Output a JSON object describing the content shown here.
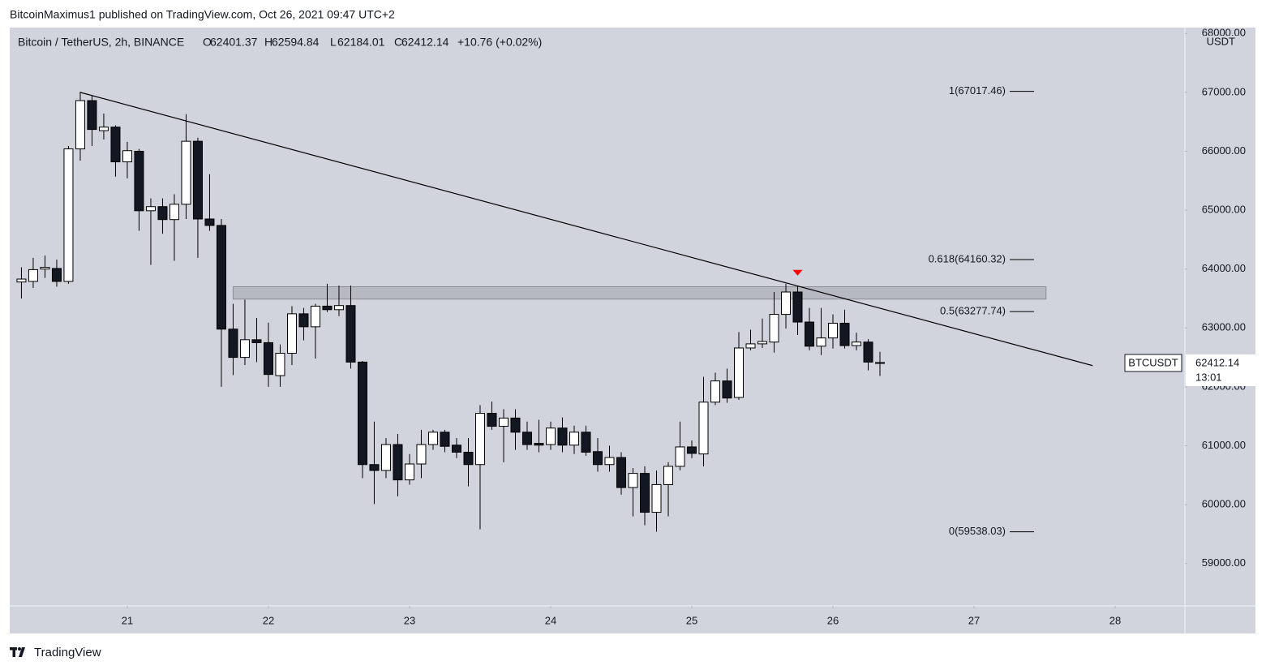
{
  "header": {
    "published": "BitcoinMaximus1 published on TradingView.com, Oct 26, 2021 09:47 UTC+2",
    "brand": "TradingView"
  },
  "chart_data": {
    "type": "candlestick",
    "title": "Bitcoin / TetherUS, 2h, BINANCE",
    "ohlc_letters": [
      "O",
      "H",
      "L",
      "C"
    ],
    "change": "+10.76 (+0.02%)",
    "unit": "USDT",
    "symbol": "BTCUSDT",
    "countdown": "13:01",
    "x": [
      20.25,
      20.3333,
      20.4167,
      20.5,
      20.5833,
      20.6667,
      20.75,
      20.8333,
      20.9167,
      21,
      21.0833,
      21.1667,
      21.25,
      21.3333,
      21.4167,
      21.5,
      21.5833,
      21.6667,
      21.75,
      21.8333,
      21.9167,
      22,
      22.0833,
      22.1667,
      22.25,
      22.3333,
      22.4167,
      22.5,
      22.5833,
      22.6667,
      22.75,
      22.8333,
      22.9167,
      23,
      23.0833,
      23.1667,
      23.25,
      23.3333,
      23.4167,
      23.5,
      23.5833,
      23.6667,
      23.75,
      23.8333,
      23.9167,
      24,
      24.0833,
      24.1667,
      24.25,
      24.3333,
      24.4167,
      24.5,
      24.5833,
      24.6667,
      24.75,
      24.8333,
      24.9167,
      25,
      25.0833,
      25.1667,
      25.25,
      25.3333,
      25.4167,
      25.5,
      25.5833,
      25.6667,
      25.75,
      25.8333,
      25.9167,
      26,
      26.0833,
      26.1667,
      26.25,
      26.3333
    ],
    "open": [
      63780,
      63790,
      64000,
      64010,
      63790,
      66040,
      66860,
      66350,
      66410,
      65820,
      66000,
      64990,
      65060,
      64840,
      65100,
      66170,
      64850,
      64740,
      62980,
      62500,
      62800,
      62750,
      62190,
      62570,
      63240,
      63020,
      63370,
      63310,
      63380,
      62420,
      60680,
      60580,
      61020,
      60420,
      60690,
      61020,
      61230,
      61010,
      60890,
      60680,
      61550,
      61330,
      61470,
      61230,
      61040,
      61020,
      61300,
      61010,
      61230,
      60900,
      60680,
      60800,
      60290,
      60530,
      59870,
      60340,
      60650,
      60980,
      60860,
      61740,
      62100,
      61820,
      62660,
      62730,
      62760,
      63230,
      63610,
      63100,
      62690,
      62830,
      63080,
      62700,
      62760,
      62401.37
    ],
    "high": [
      64030,
      64190,
      64230,
      64160,
      66090,
      67010,
      66950,
      66640,
      66440,
      66160,
      66040,
      65200,
      65200,
      65270,
      66630,
      66230,
      65610,
      64850,
      63410,
      63480,
      63170,
      63090,
      62720,
      63370,
      63340,
      63410,
      63750,
      63720,
      63720,
      62440,
      61410,
      61130,
      61200,
      60860,
      61270,
      61270,
      61270,
      61130,
      61130,
      61690,
      61750,
      61620,
      61620,
      61410,
      61440,
      61410,
      61480,
      61340,
      61340,
      61130,
      61000,
      60890,
      60620,
      60650,
      60580,
      60720,
      61410,
      61090,
      62170,
      62240,
      62310,
      62930,
      62970,
      63160,
      63610,
      63750,
      63710,
      63340,
      63340,
      63230,
      63310,
      62920,
      62810,
      62594.84
    ],
    "low": [
      63500,
      63680,
      63850,
      63700,
      63750,
      65840,
      66090,
      66200,
      65570,
      65540,
      64650,
      64070,
      64600,
      64140,
      64850,
      64190,
      64650,
      62000,
      62200,
      62370,
      62420,
      62000,
      62000,
      62370,
      62790,
      62480,
      63270,
      63200,
      62310,
      60450,
      60010,
      60450,
      60140,
      60340,
      60450,
      60930,
      60890,
      60790,
      60310,
      59580,
      61270,
      60720,
      60930,
      60930,
      60890,
      60930,
      60890,
      60860,
      60830,
      60560,
      60560,
      60170,
      59800,
      59650,
      59540,
      59800,
      60580,
      60790,
      60650,
      61690,
      61730,
      61780,
      62620,
      62660,
      62580,
      62990,
      62880,
      62620,
      62540,
      62650,
      62650,
      62620,
      62280,
      62184.01
    ],
    "close": [
      63830,
      63990,
      64030,
      63790,
      66040,
      66860,
      66370,
      66410,
      65820,
      66010,
      64990,
      65060,
      64840,
      65100,
      66170,
      64850,
      64740,
      62980,
      62500,
      62800,
      62750,
      62210,
      62570,
      63240,
      63020,
      63370,
      63310,
      63380,
      62420,
      60680,
      60580,
      61020,
      60420,
      60690,
      61020,
      61230,
      60990,
      60890,
      60680,
      61550,
      61330,
      61470,
      61230,
      61020,
      61010,
      61300,
      61010,
      61230,
      60890,
      60680,
      60800,
      60290,
      60530,
      59870,
      60340,
      60650,
      60980,
      60870,
      61740,
      62100,
      61810,
      62660,
      62730,
      62770,
      63230,
      63610,
      63100,
      62690,
      62830,
      63080,
      62700,
      62760,
      62420,
      62412.14
    ],
    "up_color": "#ffffff",
    "down_color": "#131722",
    "outline_color": "#000000",
    "background": "#d1d4dc",
    "xlim": [
      20.167,
      28.494
    ],
    "xticks": [
      21,
      22,
      23,
      24,
      25,
      26,
      27,
      28
    ],
    "ylim": [
      58280,
      68100
    ],
    "yticks": [
      {
        "value": 59000,
        "label": "59000.00"
      },
      {
        "value": 60000,
        "label": "60000.00"
      },
      {
        "value": 61000,
        "label": "61000.00"
      },
      {
        "value": 62000,
        "label": "62000.00"
      },
      {
        "value": 63000,
        "label": "63000.00"
      },
      {
        "value": 64000,
        "label": "64000.00"
      },
      {
        "value": 65000,
        "label": "65000.00"
      },
      {
        "value": 66000,
        "label": "66000.00"
      },
      {
        "value": 67000,
        "label": "67000.00"
      },
      {
        "value": 68000,
        "label": "68000.00"
      }
    ],
    "trendline": {
      "x": [
        20.667,
        27.84
      ],
      "y": [
        67000,
        62360
      ]
    },
    "zone": {
      "x": [
        21.75,
        27.51
      ],
      "y": [
        63490,
        63700
      ]
    },
    "fib_levels": [
      {
        "value": 67017.46,
        "label": "1(67017.46)"
      },
      {
        "value": 64160.32,
        "label": "0.618(64160.32)"
      },
      {
        "value": 63277.74,
        "label": "0.5(63277.74)"
      },
      {
        "value": 59538.03,
        "label": "0(59538.03)"
      }
    ],
    "markers": [
      {
        "x": 25.75,
        "color": "#ff0000"
      }
    ]
  }
}
